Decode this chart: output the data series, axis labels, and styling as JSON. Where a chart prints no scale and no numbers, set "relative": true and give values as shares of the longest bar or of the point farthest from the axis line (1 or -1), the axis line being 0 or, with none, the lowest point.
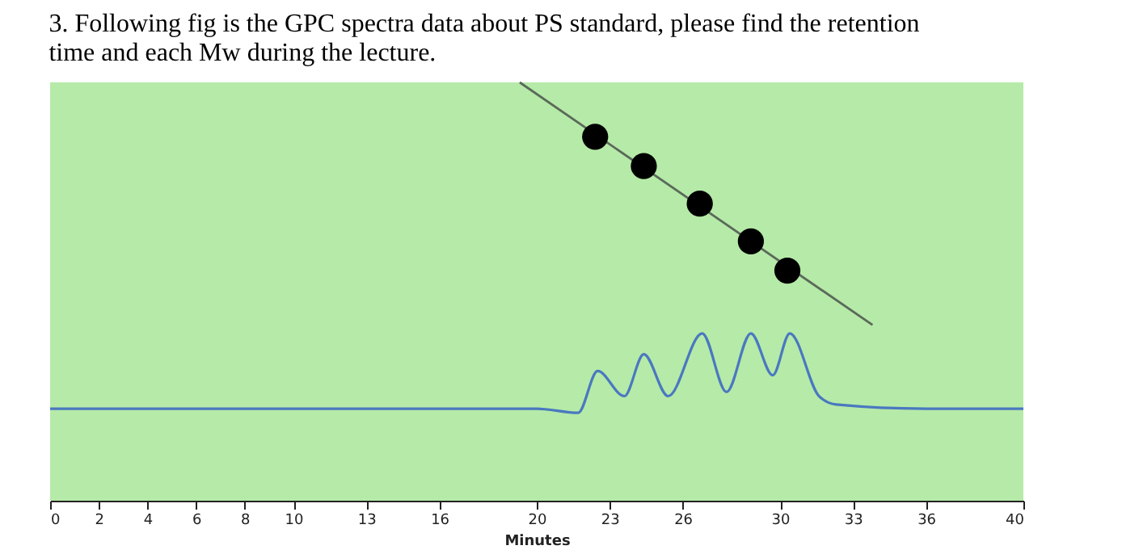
{
  "chart_data": {
    "type": "line",
    "title": "3. Following fig is the GPC spectra data about PS standard, please find the retention\ntime and each Mw during the lecture.",
    "xlabel": "Minutes",
    "relative": true,
    "xlim": [
      0,
      40
    ],
    "xticks": [
      0,
      2,
      4,
      6,
      8,
      10,
      13,
      16,
      20,
      23,
      26,
      30,
      33,
      36,
      40
    ],
    "grid": false,
    "series": [
      {
        "color": "#4a78c0",
        "x": [
          0,
          10,
          20,
          21.7,
          22.5,
          23.6,
          24.4,
          25.4,
          26.8,
          27.8,
          28.8,
          29.7,
          30.4,
          31.6,
          32.3,
          36,
          40
        ],
        "values": [
          0.22,
          0.22,
          0.22,
          0.21,
          0.31,
          0.25,
          0.35,
          0.25,
          0.4,
          0.26,
          0.4,
          0.3,
          0.4,
          0.25,
          0.23,
          0.22,
          0.22
        ]
      },
      {
        "color": "#5a6a5a",
        "x": [
          19.3,
          33.8
        ],
        "values": [
          1.0,
          0.42
        ]
      },
      {
        "type": "scatter",
        "color": "#000000",
        "marker": "circle",
        "x": [
          22.4,
          24.4,
          26.7,
          28.8,
          30.3
        ],
        "values": [
          0.87,
          0.8,
          0.71,
          0.62,
          0.55
        ]
      }
    ]
  }
}
